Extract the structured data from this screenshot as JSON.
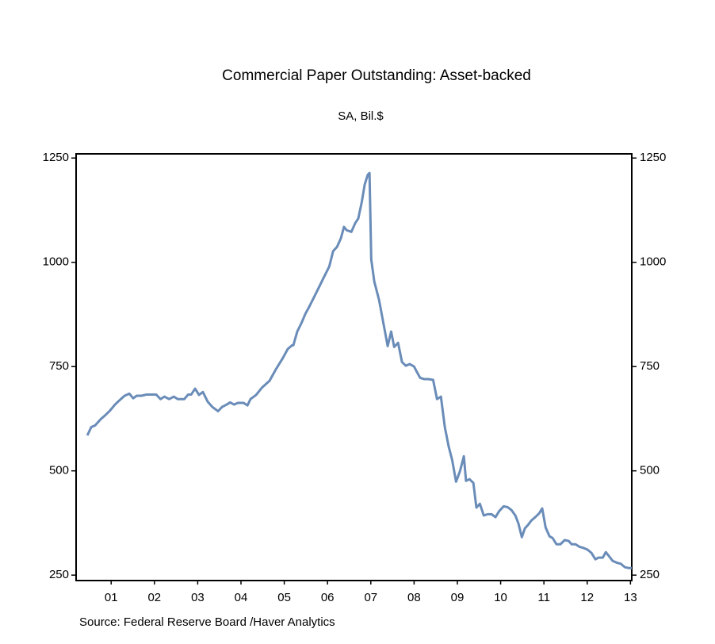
{
  "chart_data": {
    "type": "line",
    "title": "Commercial Paper Outstanding: Asset-backed",
    "subtitle": "SA, Bil.$",
    "source": "Source:  Federal Reserve Board /Haver Analytics",
    "xlim": [
      2000.69,
      2013.53
    ],
    "ylim": [
      237,
      1260
    ],
    "xticks": [
      {
        "value": 2001.5,
        "label": "01"
      },
      {
        "value": 2002.5,
        "label": "02"
      },
      {
        "value": 2003.5,
        "label": "03"
      },
      {
        "value": 2004.5,
        "label": "04"
      },
      {
        "value": 2005.5,
        "label": "05"
      },
      {
        "value": 2006.5,
        "label": "06"
      },
      {
        "value": 2007.5,
        "label": "07"
      },
      {
        "value": 2008.5,
        "label": "08"
      },
      {
        "value": 2009.5,
        "label": "09"
      },
      {
        "value": 2010.5,
        "label": "10"
      },
      {
        "value": 2011.5,
        "label": "11"
      },
      {
        "value": 2012.5,
        "label": "12"
      },
      {
        "value": 2013.5,
        "label": "13"
      }
    ],
    "yticks": [
      250,
      500,
      750,
      1000,
      1250
    ],
    "right_axis": true,
    "grid": false,
    "series": [
      {
        "name": "Asset-backed",
        "color": "#6a8cb8",
        "x": [
          2000.95,
          2001.04,
          2001.13,
          2001.26,
          2001.37,
          2001.46,
          2001.59,
          2001.68,
          2001.81,
          2001.92,
          2002.01,
          2002.09,
          2002.2,
          2002.32,
          2002.45,
          2002.54,
          2002.64,
          2002.73,
          2002.84,
          2002.95,
          2003.04,
          2003.19,
          2003.28,
          2003.35,
          2003.44,
          2003.53,
          2003.62,
          2003.73,
          2003.84,
          2003.97,
          2004.06,
          2004.17,
          2004.25,
          2004.34,
          2004.43,
          2004.56,
          2004.65,
          2004.72,
          2004.85,
          2004.98,
          2005.16,
          2005.31,
          2005.47,
          2005.58,
          2005.68,
          2005.71,
          2005.8,
          2005.9,
          2005.99,
          2006.08,
          2006.21,
          2006.32,
          2006.41,
          2006.54,
          2006.63,
          2006.72,
          2006.81,
          2006.88,
          2006.94,
          2007.05,
          2007.14,
          2007.21,
          2007.29,
          2007.36,
          2007.43,
          2007.47,
          2007.51,
          2007.58,
          2007.69,
          2007.8,
          2007.89,
          2007.97,
          2008.04,
          2008.13,
          2008.22,
          2008.31,
          2008.4,
          2008.5,
          2008.55,
          2008.64,
          2008.73,
          2008.83,
          2008.94,
          2009.03,
          2009.12,
          2009.21,
          2009.3,
          2009.38,
          2009.47,
          2009.56,
          2009.65,
          2009.7,
          2009.78,
          2009.87,
          2009.94,
          2010.02,
          2010.11,
          2010.2,
          2010.29,
          2010.38,
          2010.47,
          2010.57,
          2010.66,
          2010.75,
          2010.84,
          2010.91,
          2010.99,
          2011.06,
          2011.13,
          2011.21,
          2011.3,
          2011.39,
          2011.46,
          2011.54,
          2011.63,
          2011.7,
          2011.79,
          2011.88,
          2011.98,
          2012.07,
          2012.14,
          2012.23,
          2012.32,
          2012.42,
          2012.51,
          2012.6,
          2012.69,
          2012.76,
          2012.86,
          2012.93,
          2013.0,
          2013.09,
          2013.18,
          2013.28,
          2013.37,
          2013.46,
          2013.53
        ],
        "values": [
          585,
          605,
          609,
          624,
          634,
          643,
          659,
          668,
          680,
          685,
          674,
          680,
          680,
          683,
          683,
          683,
          672,
          678,
          672,
          678,
          672,
          672,
          683,
          683,
          697,
          682,
          689,
          666,
          653,
          643,
          653,
          659,
          664,
          659,
          663,
          663,
          657,
          672,
          682,
          699,
          716,
          744,
          771,
          792,
          801,
          801,
          834,
          855,
          877,
          894,
          921,
          944,
          963,
          990,
          1027,
          1037,
          1058,
          1085,
          1077,
          1073,
          1094,
          1105,
          1144,
          1187,
          1210,
          1214,
          1007,
          954,
          910,
          849,
          799,
          834,
          797,
          807,
          761,
          752,
          756,
          750,
          740,
          723,
          720,
          720,
          718,
          672,
          678,
          605,
          558,
          526,
          474,
          499,
          535,
          476,
          480,
          471,
          412,
          421,
          393,
          396,
          396,
          389,
          404,
          415,
          413,
          406,
          393,
          374,
          341,
          362,
          370,
          381,
          389,
          398,
          410,
          364,
          343,
          339,
          324,
          324,
          334,
          332,
          324,
          324,
          318,
          315,
          311,
          303,
          288,
          292,
          292,
          305,
          296,
          284,
          280,
          277,
          269,
          267,
          267
        ]
      }
    ]
  }
}
